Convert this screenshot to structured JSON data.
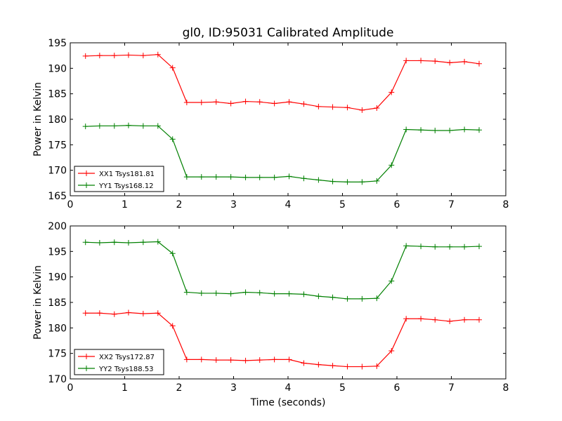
{
  "colors": {
    "xx": "#ff0000",
    "yy": "#008000",
    "axes": "#000000",
    "background": "#ffffff"
  },
  "chart_data": [
    {
      "type": "line",
      "title": "gl0, ID:95031 Calibrated Amplitude",
      "xlabel": "",
      "ylabel": "Power in Kelvin",
      "xlim": [
        0,
        8
      ],
      "ylim": [
        165,
        195
      ],
      "xticks": [
        "0",
        "1",
        "2",
        "3",
        "4",
        "5",
        "6",
        "7",
        "8"
      ],
      "yticks": [
        "165",
        "170",
        "175",
        "180",
        "185",
        "190",
        "195"
      ],
      "legend_position": "lower-left",
      "grid": false,
      "x": [
        0.28,
        0.54,
        0.81,
        1.07,
        1.34,
        1.61,
        1.88,
        2.14,
        2.41,
        2.68,
        2.95,
        3.22,
        3.48,
        3.75,
        4.02,
        4.29,
        4.56,
        4.82,
        5.09,
        5.36,
        5.63,
        5.9,
        6.17,
        6.44,
        6.7,
        6.97,
        7.24,
        7.51
      ],
      "series": [
        {
          "name": "XX1 Tsys181.81",
          "color": "#ff0000",
          "values": [
            192.4,
            192.5,
            192.5,
            192.6,
            192.5,
            192.7,
            190.1,
            183.3,
            183.3,
            183.4,
            183.1,
            183.5,
            183.4,
            183.1,
            183.4,
            183.0,
            182.5,
            182.4,
            182.3,
            181.8,
            182.2,
            185.3,
            191.5,
            191.5,
            191.4,
            191.1,
            191.3,
            190.9
          ]
        },
        {
          "name": "YY1 Tsys168.12",
          "color": "#008000",
          "values": [
            178.6,
            178.7,
            178.7,
            178.8,
            178.7,
            178.7,
            176.1,
            168.7,
            168.7,
            168.7,
            168.7,
            168.6,
            168.6,
            168.6,
            168.8,
            168.4,
            168.1,
            167.8,
            167.7,
            167.7,
            167.9,
            171.0,
            178.0,
            177.9,
            177.8,
            177.8,
            178.0,
            177.9
          ]
        }
      ]
    },
    {
      "type": "line",
      "title": "",
      "xlabel": "Time (seconds)",
      "ylabel": "Power in Kelvin",
      "xlim": [
        0,
        8
      ],
      "ylim": [
        170,
        200
      ],
      "xticks": [
        "0",
        "1",
        "2",
        "3",
        "4",
        "5",
        "6",
        "7",
        "8"
      ],
      "yticks": [
        "170",
        "175",
        "180",
        "185",
        "190",
        "195",
        "200"
      ],
      "legend_position": "lower-left",
      "grid": false,
      "x": [
        0.28,
        0.54,
        0.81,
        1.07,
        1.34,
        1.61,
        1.88,
        2.14,
        2.41,
        2.68,
        2.95,
        3.22,
        3.48,
        3.75,
        4.02,
        4.29,
        4.56,
        4.82,
        5.09,
        5.36,
        5.63,
        5.9,
        6.17,
        6.44,
        6.7,
        6.97,
        7.24,
        7.51
      ],
      "series": [
        {
          "name": "XX2 Tsys172.87",
          "color": "#ff0000",
          "values": [
            182.9,
            182.9,
            182.7,
            183.0,
            182.8,
            182.9,
            180.4,
            173.8,
            173.8,
            173.7,
            173.7,
            173.6,
            173.7,
            173.8,
            173.8,
            173.1,
            172.8,
            172.6,
            172.4,
            172.4,
            172.5,
            175.5,
            181.8,
            181.8,
            181.6,
            181.3,
            181.6,
            181.6
          ]
        },
        {
          "name": "YY2 Tsys188.53",
          "color": "#008000",
          "values": [
            196.8,
            196.7,
            196.8,
            196.7,
            196.8,
            196.9,
            194.6,
            187.0,
            186.8,
            186.8,
            186.7,
            187.0,
            186.9,
            186.7,
            186.7,
            186.6,
            186.2,
            186.0,
            185.7,
            185.7,
            185.8,
            189.2,
            196.1,
            196.0,
            195.9,
            195.9,
            195.9,
            196.0
          ]
        }
      ]
    }
  ]
}
